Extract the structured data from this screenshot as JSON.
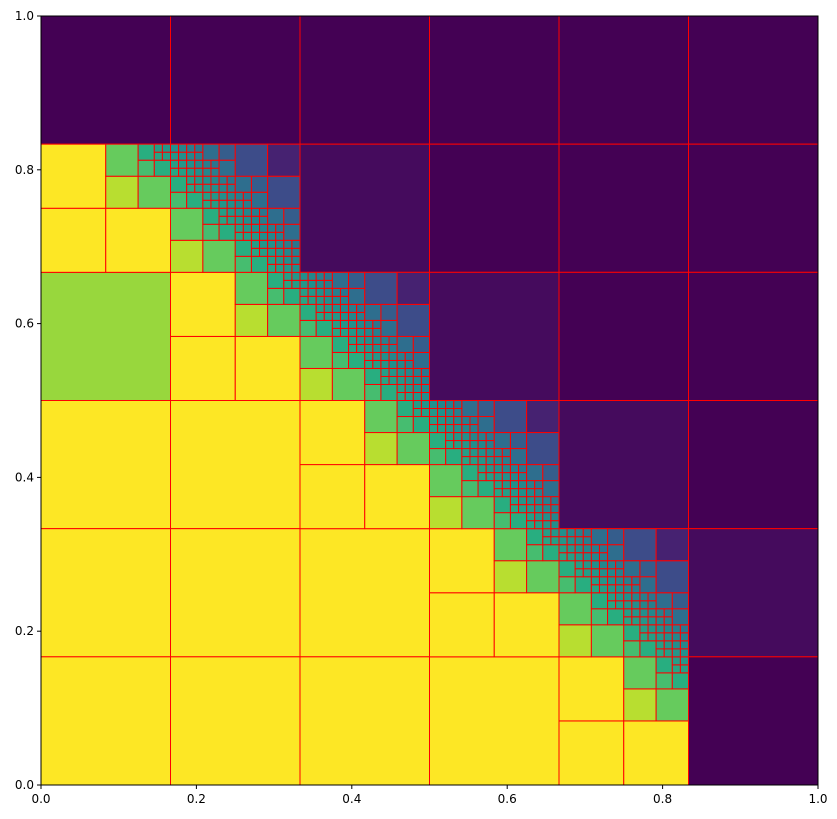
{
  "chart_data": {
    "type": "heatmap",
    "title": "",
    "xlabel": "",
    "ylabel": "",
    "xlim": [
      0,
      1
    ],
    "ylim": [
      0,
      1
    ],
    "grid": false,
    "xticks": [
      "0.0",
      "0.2",
      "0.4",
      "0.6",
      "0.8",
      "1.0"
    ],
    "yticks": [
      "0.0",
      "0.2",
      "0.4",
      "0.6",
      "0.8",
      "1.0"
    ],
    "colormap": "viridis",
    "cell_edge_color": "#ff0000",
    "interface_direction": "c = 1 - x - y (adaptive quadtree-like refinement along the diagonal)",
    "cells": [
      {
        "x0": 0.0,
        "x1": 0.16667,
        "y0": 0.83333,
        "y1": 1.0,
        "value": 0.0
      },
      {
        "x0": 0.16667,
        "x1": 0.33333,
        "y0": 0.83333,
        "y1": 1.0,
        "value": 0.0
      },
      {
        "x0": 0.33333,
        "x1": 0.5,
        "y0": 0.83333,
        "y1": 1.0,
        "value": 0.0
      },
      {
        "x0": 0.5,
        "x1": 0.66667,
        "y0": 0.83333,
        "y1": 1.0,
        "value": 0.0
      },
      {
        "x0": 0.66667,
        "x1": 0.83333,
        "y0": 0.83333,
        "y1": 1.0,
        "value": 0.0
      },
      {
        "x0": 0.83333,
        "x1": 1.0,
        "y0": 0.83333,
        "y1": 1.0,
        "value": 0.0
      },
      {
        "x0": 0.33333,
        "x1": 0.5,
        "y0": 0.66667,
        "y1": 0.83333,
        "value": 0.03
      },
      {
        "x0": 0.5,
        "x1": 0.66667,
        "y0": 0.66667,
        "y1": 0.83333,
        "value": 0.0
      },
      {
        "x0": 0.66667,
        "x1": 0.83333,
        "y0": 0.66667,
        "y1": 0.83333,
        "value": 0.0
      },
      {
        "x0": 0.83333,
        "x1": 1.0,
        "y0": 0.66667,
        "y1": 0.83333,
        "value": 0.0
      },
      {
        "x0": 0.5,
        "x1": 0.66667,
        "y0": 0.5,
        "y1": 0.66667,
        "value": 0.03
      },
      {
        "x0": 0.66667,
        "x1": 0.83333,
        "y0": 0.5,
        "y1": 0.66667,
        "value": 0.0
      },
      {
        "x0": 0.83333,
        "x1": 1.0,
        "y0": 0.5,
        "y1": 0.66667,
        "value": 0.0
      },
      {
        "x0": 0.66667,
        "x1": 0.83333,
        "y0": 0.33333,
        "y1": 0.5,
        "value": 0.03
      },
      {
        "x0": 0.83333,
        "x1": 1.0,
        "y0": 0.33333,
        "y1": 0.5,
        "value": 0.0
      },
      {
        "x0": 0.83333,
        "x1": 1.0,
        "y0": 0.16667,
        "y1": 0.33333,
        "value": 0.03
      },
      {
        "x0": 0.83333,
        "x1": 1.0,
        "y0": 0.0,
        "y1": 0.16667,
        "value": 0.0
      },
      {
        "x0": 0.0,
        "x1": 0.16667,
        "y0": 0.5,
        "y1": 0.66667,
        "value": 0.85
      },
      {
        "x0": 0.0,
        "x1": 0.16667,
        "y0": 0.33333,
        "y1": 0.5,
        "value": 1.0
      },
      {
        "x0": 0.16667,
        "x1": 0.33333,
        "y0": 0.33333,
        "y1": 0.5,
        "value": 1.0
      },
      {
        "x0": 0.0,
        "x1": 0.16667,
        "y0": 0.16667,
        "y1": 0.33333,
        "value": 1.0
      },
      {
        "x0": 0.16667,
        "x1": 0.33333,
        "y0": 0.16667,
        "y1": 0.33333,
        "value": 1.0
      },
      {
        "x0": 0.33333,
        "x1": 0.5,
        "y0": 0.16667,
        "y1": 0.33333,
        "value": 1.0
      },
      {
        "x0": 0.0,
        "x1": 0.16667,
        "y0": 0.0,
        "y1": 0.16667,
        "value": 1.0
      },
      {
        "x0": 0.16667,
        "x1": 0.33333,
        "y0": 0.0,
        "y1": 0.16667,
        "value": 1.0
      },
      {
        "x0": 0.33333,
        "x1": 0.5,
        "y0": 0.0,
        "y1": 0.16667,
        "value": 1.0
      }
    ]
  }
}
